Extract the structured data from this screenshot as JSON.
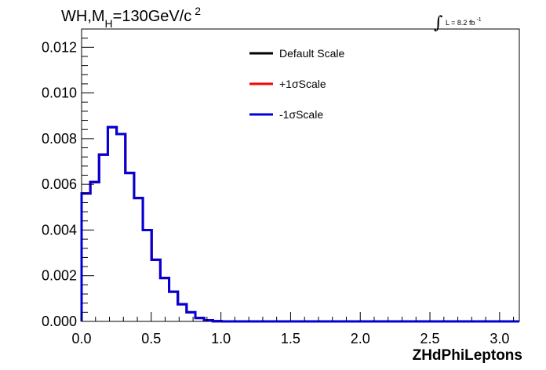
{
  "chart_data": {
    "type": "line",
    "title": {
      "main": "WH,M",
      "subscript": "H",
      "rest": "=130GeV/c",
      "superscript": "2"
    },
    "annotation": {
      "integral_symbol": "∫",
      "text": "L = 8.2 fb",
      "superscript": "-1"
    },
    "xlabel": "ZHdPhiLeptons",
    "ylabel": "",
    "xlim": [
      0,
      3.1416
    ],
    "ylim": [
      0,
      0.0128
    ],
    "x_ticks": [
      0.0,
      0.5,
      1.0,
      1.5,
      2.0,
      2.5,
      3.0
    ],
    "x_tick_labels": [
      "0.0",
      "0.5",
      "1.0",
      "1.5",
      "2.0",
      "2.5",
      "3.0"
    ],
    "y_ticks": [
      0.0,
      0.002,
      0.004,
      0.006,
      0.008,
      0.01,
      0.012
    ],
    "y_tick_labels": [
      "0.000",
      "0.002",
      "0.004",
      "0.006",
      "0.008",
      "0.010",
      "0.012"
    ],
    "grid": false,
    "legend_position": "top-center",
    "bin_width": 0.0628,
    "series": [
      {
        "name": "Default Scale",
        "color": "#000000",
        "values": [
          0.0056,
          0.0061,
          0.0073,
          0.0085,
          0.0082,
          0.0065,
          0.0054,
          0.004,
          0.0027,
          0.0019,
          0.0013,
          0.00075,
          0.0004,
          0.00015,
          5e-05,
          1e-05,
          0,
          0,
          0,
          0,
          0,
          0,
          0,
          0,
          0,
          0,
          0,
          0,
          0,
          0,
          0,
          0,
          0,
          0,
          0,
          0,
          0,
          0,
          0,
          0,
          0,
          0,
          0,
          0,
          0,
          0,
          0,
          0,
          0,
          0
        ]
      },
      {
        "name": "+1σScale",
        "color": "#ff0000",
        "values": [
          0.0056,
          0.0061,
          0.0073,
          0.0085,
          0.0082,
          0.0065,
          0.0054,
          0.004,
          0.0027,
          0.0019,
          0.0013,
          0.00075,
          0.0004,
          0.00015,
          5e-05,
          1e-05,
          0,
          0,
          0,
          0,
          0,
          0,
          0,
          0,
          0,
          0,
          0,
          0,
          0,
          0,
          0,
          0,
          0,
          0,
          0,
          0,
          0,
          0,
          0,
          0,
          0,
          0,
          0,
          0,
          0,
          0,
          0,
          0,
          0,
          0
        ]
      },
      {
        "name": "-1σScale",
        "color": "#0000dd",
        "values": [
          0.0056,
          0.0061,
          0.0073,
          0.0085,
          0.0082,
          0.0065,
          0.0054,
          0.004,
          0.0027,
          0.0019,
          0.0013,
          0.00075,
          0.0004,
          0.00015,
          5e-05,
          1e-05,
          0,
          0,
          0,
          0,
          0,
          0,
          0,
          0,
          0,
          0,
          0,
          0,
          0,
          0,
          0,
          0,
          0,
          0,
          0,
          0,
          0,
          0,
          0,
          0,
          0,
          0,
          0,
          0,
          0,
          0,
          0,
          0,
          0,
          0
        ]
      }
    ]
  }
}
